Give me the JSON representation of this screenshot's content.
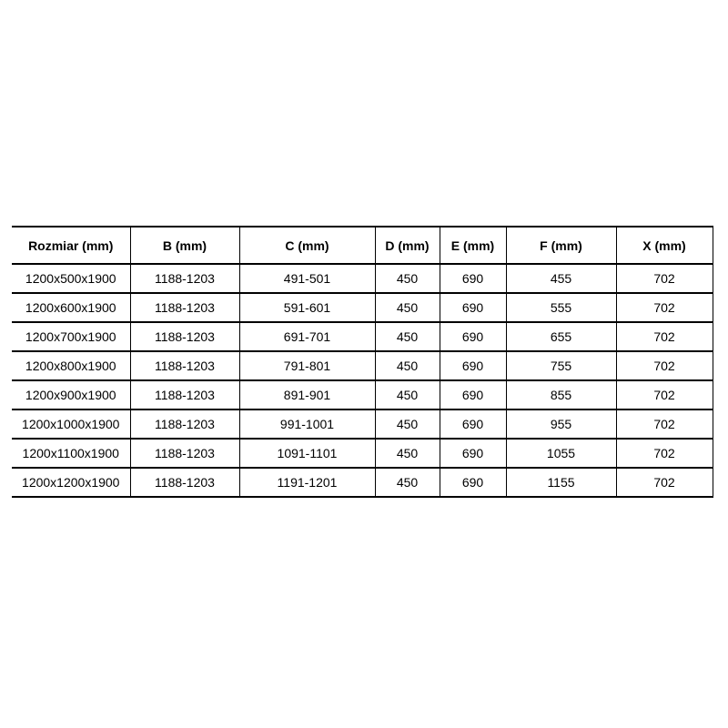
{
  "chart_data": {
    "type": "table",
    "title": "",
    "columns": [
      "Rozmiar (mm)",
      "B (mm)",
      "C (mm)",
      "D (mm)",
      "E (mm)",
      "F (mm)",
      "X (mm)"
    ],
    "rows": [
      [
        "1200x500x1900",
        "1188-1203",
        "491-501",
        "450",
        "690",
        "455",
        "702"
      ],
      [
        "1200x600x1900",
        "1188-1203",
        "591-601",
        "450",
        "690",
        "555",
        "702"
      ],
      [
        "1200x700x1900",
        "1188-1203",
        "691-701",
        "450",
        "690",
        "655",
        "702"
      ],
      [
        "1200x800x1900",
        "1188-1203",
        "791-801",
        "450",
        "690",
        "755",
        "702"
      ],
      [
        "1200x900x1900",
        "1188-1203",
        "891-901",
        "450",
        "690",
        "855",
        "702"
      ],
      [
        "1200x1000x1900",
        "1188-1203",
        "991-1001",
        "450",
        "690",
        "955",
        "702"
      ],
      [
        "1200x1100x1900",
        "1188-1203",
        "1091-1101",
        "450",
        "690",
        "1055",
        "702"
      ],
      [
        "1200x1200x1900",
        "1188-1203",
        "1191-1201",
        "450",
        "690",
        "1155",
        "702"
      ]
    ]
  },
  "colors": {
    "background": "#ffffff",
    "border": "#000000",
    "text": "#000000"
  }
}
